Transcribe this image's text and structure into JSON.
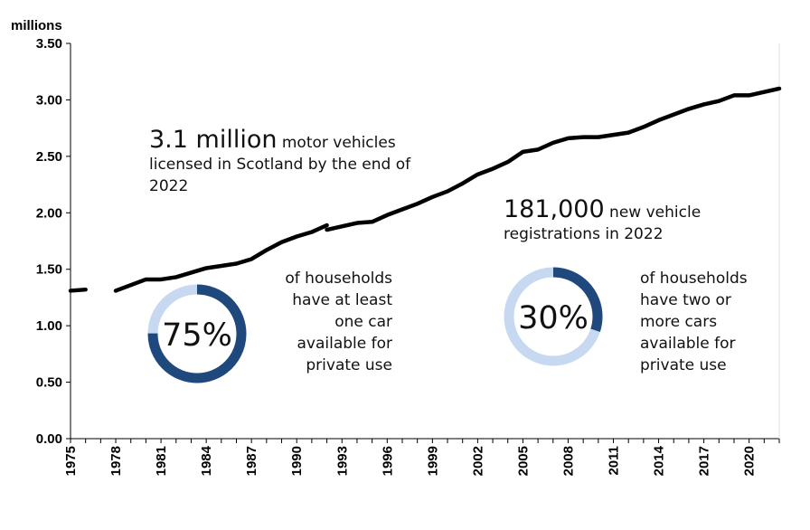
{
  "chart_data": {
    "type": "line",
    "ylabel": "millions",
    "ylim": [
      0,
      3.5
    ],
    "xlim": [
      1975,
      2022
    ],
    "y_ticks": [
      "0.00",
      "0.50",
      "1.00",
      "1.50",
      "2.00",
      "2.50",
      "3.00",
      "3.50"
    ],
    "x_ticks": [
      "1975",
      "1978",
      "1981",
      "1984",
      "1987",
      "1990",
      "1993",
      "1996",
      "1999",
      "2002",
      "2005",
      "2008",
      "2011",
      "2014",
      "2017",
      "2020"
    ],
    "grid": false,
    "line_color": "#000000",
    "series": [
      {
        "x": [
          1975,
          1976
        ],
        "values": [
          1.31,
          1.32
        ]
      },
      {
        "x": [
          1978,
          1979,
          1980,
          1981,
          1982,
          1983,
          1984,
          1985,
          1986,
          1987,
          1988,
          1989,
          1990,
          1991,
          1992
        ],
        "values": [
          1.31,
          1.36,
          1.41,
          1.41,
          1.43,
          1.47,
          1.51,
          1.53,
          1.55,
          1.59,
          1.67,
          1.74,
          1.79,
          1.83,
          1.89
        ]
      },
      {
        "x": [
          1992,
          1993,
          1994,
          1995,
          1996,
          1997,
          1998,
          1999,
          2000,
          2001,
          2002,
          2003,
          2004,
          2005,
          2006,
          2007,
          2008,
          2009,
          2010,
          2011,
          2012,
          2013,
          2014,
          2015,
          2016,
          2017,
          2018,
          2019,
          2020,
          2021,
          2022
        ],
        "values": [
          1.85,
          1.88,
          1.91,
          1.92,
          1.98,
          2.03,
          2.08,
          2.14,
          2.19,
          2.26,
          2.34,
          2.39,
          2.45,
          2.54,
          2.56,
          2.62,
          2.66,
          2.67,
          2.67,
          2.69,
          2.71,
          2.76,
          2.82,
          2.87,
          2.92,
          2.96,
          2.99,
          3.04,
          3.04,
          3.07,
          3.1
        ]
      }
    ],
    "annotations": {
      "vehicles": {
        "big": "3.1 million",
        "line1": " motor vehicles",
        "line2": "licensed in Scotland by the end of",
        "line3": "2022"
      },
      "registrations": {
        "big": "181,000",
        "line1": " new vehicle",
        "line2": "registrations in 2022"
      },
      "donut1": {
        "value": 75,
        "label": "75%",
        "text": [
          "of households",
          "have at least",
          "one car",
          "available for",
          "private use"
        ]
      },
      "donut2": {
        "value": 30,
        "label": "30%",
        "text": [
          "of households",
          "have two or",
          "more cars",
          "available for",
          "private use"
        ]
      }
    },
    "donut_colors": {
      "filled": "#1f497d",
      "remaining": "#c6d9f0"
    }
  }
}
